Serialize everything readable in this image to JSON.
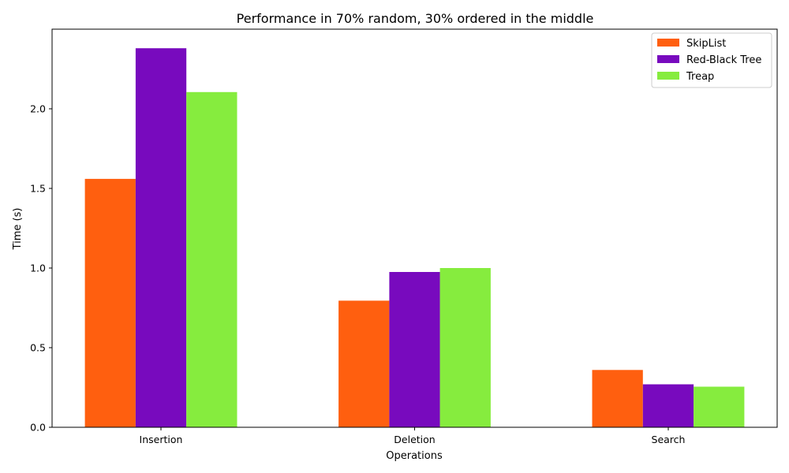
{
  "chart_data": {
    "type": "bar",
    "title": "Performance in 70% random, 30% ordered in the middle",
    "xlabel": "Operations",
    "ylabel": "Time (s)",
    "categories": [
      "Insertion",
      "Deletion",
      "Search"
    ],
    "series": [
      {
        "name": "SkipList",
        "color": "#ff5f0f",
        "values": [
          1.56,
          0.795,
          0.36
        ]
      },
      {
        "name": "Red-Black Tree",
        "color": "#780abe",
        "values": [
          2.38,
          0.975,
          0.27
        ]
      },
      {
        "name": "Treap",
        "color": "#86ec3e",
        "values": [
          2.105,
          1.0,
          0.255
        ]
      }
    ],
    "ylim": [
      0,
      2.5
    ],
    "yticks": [
      0.0,
      0.5,
      1.0,
      1.5,
      2.0
    ],
    "ytick_labels": [
      "0.0",
      "0.5",
      "1.0",
      "1.5",
      "2.0"
    ],
    "grid": false,
    "legend_position": "top-right"
  }
}
